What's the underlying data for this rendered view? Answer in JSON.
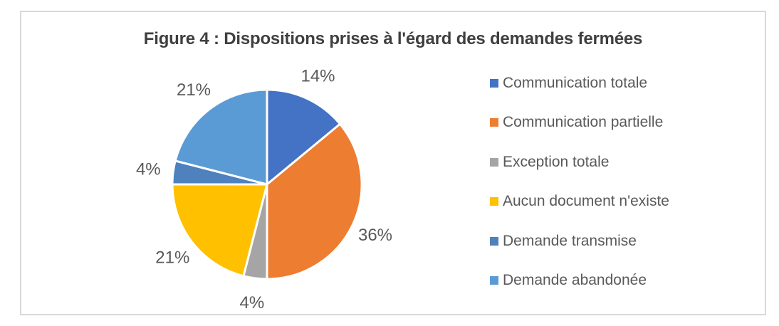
{
  "figure": {
    "title": "Figure 4 : Dispositions prises à l'égard des demandes fermées"
  },
  "chart_data": {
    "type": "pie",
    "title": "Figure 4 : Dispositions prises à l'égard des demandes fermées",
    "categories": [
      "Communication totale",
      "Communication partielle",
      "Exception totale",
      "Aucun document n'existe",
      "Demande transmise",
      "Demande abandonée"
    ],
    "values": [
      14,
      36,
      4,
      21,
      4,
      21
    ],
    "unit": "%",
    "data_labels": [
      "14%",
      "36%",
      "4%",
      "21%",
      "4%",
      "21%"
    ],
    "slice_colors": [
      "#4472C4",
      "#ED7D31",
      "#A5A5A5",
      "#FFC000",
      "#4E81BD",
      "#5B9BD5"
    ],
    "start_angle_deg": 0,
    "direction": "clockwise",
    "data_label_position": "outside",
    "legend_position": "right",
    "grid": false
  },
  "legend": {
    "items": [
      {
        "label": "Communication totale",
        "color": "#4472C4"
      },
      {
        "label": "Communication partielle",
        "color": "#ED7D31"
      },
      {
        "label": "Exception totale",
        "color": "#A5A5A5"
      },
      {
        "label": "Aucun document n'existe",
        "color": "#FFC000"
      },
      {
        "label": "Demande transmise",
        "color": "#4E81BD"
      },
      {
        "label": "Demande abandonée",
        "color": "#5B9BD5"
      }
    ]
  },
  "style_colors": {
    "title_text": "#3F3F3F",
    "label_text": "#595959",
    "box_border": "#D9D9D9",
    "slice_separator": "#FFFFFF"
  }
}
